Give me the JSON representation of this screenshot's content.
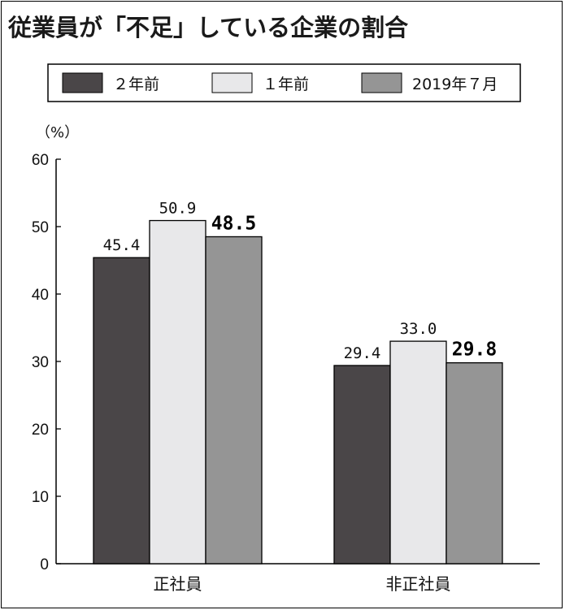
{
  "chart_data": {
    "type": "bar",
    "title": "従業員が「不足」している企業の割合",
    "unit_label": "（%）",
    "categories": [
      "正社員",
      "非正社員"
    ],
    "series": [
      {
        "name": "２年前",
        "values": [
          45.4,
          29.4
        ],
        "value_labels": [
          "45.4",
          "29.4"
        ],
        "color": "#4a4648",
        "bold_labels": false
      },
      {
        "name": "１年前",
        "values": [
          50.9,
          33.0
        ],
        "value_labels": [
          "50.9",
          "33.0"
        ],
        "color": "#e8e8ea",
        "bold_labels": false
      },
      {
        "name": "2019年７月",
        "values": [
          48.5,
          29.8
        ],
        "value_labels": [
          "48.5",
          "29.8"
        ],
        "color": "#959595",
        "bold_labels": true
      }
    ],
    "ylim": [
      0,
      60
    ],
    "yticks": [
      "0",
      "10",
      "20",
      "30",
      "40",
      "50",
      "60"
    ],
    "legend_position": "top",
    "grid": false
  }
}
